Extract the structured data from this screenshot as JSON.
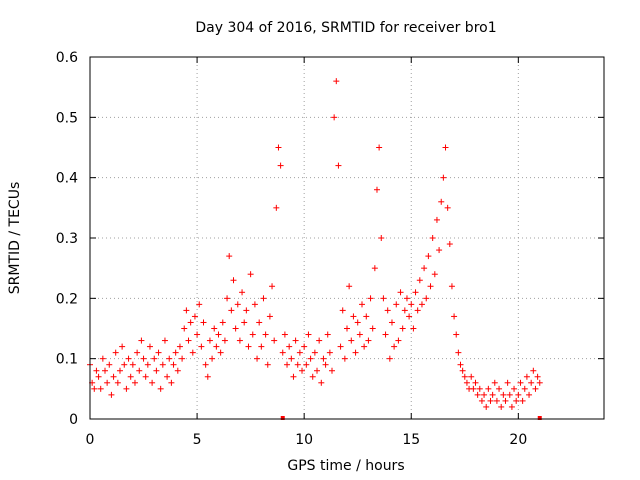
{
  "chart_data": {
    "type": "scatter",
    "title": "Day 304 of 2016, SRMTID for receiver bro1",
    "xlabel": "GPS time / hours",
    "ylabel": "SRMTID / TECUs",
    "xlim": [
      0,
      24
    ],
    "ylim": [
      0,
      0.6
    ],
    "x_ticks": [
      0,
      5,
      10,
      15,
      20
    ],
    "x_tick_labels": [
      "0",
      "5",
      "10",
      "15",
      "20"
    ],
    "y_ticks": [
      0,
      0.1,
      0.2,
      0.3,
      0.4,
      0.5,
      0.6
    ],
    "y_tick_labels": [
      "0",
      "0.1",
      "0.2",
      "0.3",
      "0.4",
      "0.5",
      "0.6"
    ],
    "grid": true,
    "marker": "plus",
    "color": "#ff0000",
    "x_axis_markers": [
      9.0,
      21.0
    ],
    "series": [
      {
        "name": "SRMTID",
        "points": [
          [
            0.0,
            0.09
          ],
          [
            0.1,
            0.06
          ],
          [
            0.2,
            0.05
          ],
          [
            0.3,
            0.08
          ],
          [
            0.4,
            0.07
          ],
          [
            0.5,
            0.05
          ],
          [
            0.6,
            0.1
          ],
          [
            0.7,
            0.08
          ],
          [
            0.8,
            0.06
          ],
          [
            0.9,
            0.09
          ],
          [
            1.0,
            0.04
          ],
          [
            1.1,
            0.07
          ],
          [
            1.2,
            0.11
          ],
          [
            1.3,
            0.06
          ],
          [
            1.4,
            0.08
          ],
          [
            1.5,
            0.12
          ],
          [
            1.6,
            0.09
          ],
          [
            1.7,
            0.05
          ],
          [
            1.8,
            0.1
          ],
          [
            1.9,
            0.07
          ],
          [
            2.0,
            0.09
          ],
          [
            2.1,
            0.06
          ],
          [
            2.2,
            0.11
          ],
          [
            2.3,
            0.08
          ],
          [
            2.4,
            0.13
          ],
          [
            2.5,
            0.1
          ],
          [
            2.6,
            0.07
          ],
          [
            2.7,
            0.09
          ],
          [
            2.8,
            0.12
          ],
          [
            2.9,
            0.06
          ],
          [
            3.0,
            0.1
          ],
          [
            3.1,
            0.08
          ],
          [
            3.2,
            0.11
          ],
          [
            3.3,
            0.05
          ],
          [
            3.4,
            0.09
          ],
          [
            3.5,
            0.13
          ],
          [
            3.6,
            0.07
          ],
          [
            3.7,
            0.1
          ],
          [
            3.8,
            0.06
          ],
          [
            3.9,
            0.09
          ],
          [
            4.0,
            0.11
          ],
          [
            4.1,
            0.08
          ],
          [
            4.2,
            0.12
          ],
          [
            4.3,
            0.1
          ],
          [
            4.4,
            0.15
          ],
          [
            4.5,
            0.18
          ],
          [
            4.6,
            0.13
          ],
          [
            4.7,
            0.16
          ],
          [
            4.8,
            0.11
          ],
          [
            4.9,
            0.17
          ],
          [
            5.0,
            0.14
          ],
          [
            5.1,
            0.19
          ],
          [
            5.2,
            0.12
          ],
          [
            5.3,
            0.16
          ],
          [
            5.4,
            0.09
          ],
          [
            5.5,
            0.07
          ],
          [
            5.6,
            0.13
          ],
          [
            5.7,
            0.1
          ],
          [
            5.8,
            0.15
          ],
          [
            5.9,
            0.12
          ],
          [
            6.0,
            0.14
          ],
          [
            6.1,
            0.11
          ],
          [
            6.2,
            0.16
          ],
          [
            6.3,
            0.13
          ],
          [
            6.4,
            0.2
          ],
          [
            6.5,
            0.27
          ],
          [
            6.6,
            0.18
          ],
          [
            6.7,
            0.23
          ],
          [
            6.8,
            0.15
          ],
          [
            6.9,
            0.19
          ],
          [
            7.0,
            0.13
          ],
          [
            7.1,
            0.21
          ],
          [
            7.2,
            0.16
          ],
          [
            7.3,
            0.18
          ],
          [
            7.4,
            0.12
          ],
          [
            7.5,
            0.24
          ],
          [
            7.6,
            0.14
          ],
          [
            7.7,
            0.19
          ],
          [
            7.8,
            0.1
          ],
          [
            7.9,
            0.16
          ],
          [
            8.0,
            0.12
          ],
          [
            8.1,
            0.2
          ],
          [
            8.2,
            0.14
          ],
          [
            8.3,
            0.09
          ],
          [
            8.4,
            0.17
          ],
          [
            8.5,
            0.22
          ],
          [
            8.6,
            0.13
          ],
          [
            8.7,
            0.35
          ],
          [
            8.8,
            0.45
          ],
          [
            8.9,
            0.42
          ],
          [
            9.0,
            0.11
          ],
          [
            9.1,
            0.14
          ],
          [
            9.2,
            0.09
          ],
          [
            9.3,
            0.12
          ],
          [
            9.4,
            0.1
          ],
          [
            9.5,
            0.07
          ],
          [
            9.6,
            0.13
          ],
          [
            9.7,
            0.09
          ],
          [
            9.8,
            0.11
          ],
          [
            9.9,
            0.08
          ],
          [
            10.0,
            0.12
          ],
          [
            10.1,
            0.09
          ],
          [
            10.2,
            0.14
          ],
          [
            10.3,
            0.1
          ],
          [
            10.4,
            0.07
          ],
          [
            10.5,
            0.11
          ],
          [
            10.6,
            0.08
          ],
          [
            10.7,
            0.13
          ],
          [
            10.8,
            0.06
          ],
          [
            10.9,
            0.1
          ],
          [
            11.0,
            0.09
          ],
          [
            11.1,
            0.14
          ],
          [
            11.2,
            0.11
          ],
          [
            11.3,
            0.08
          ],
          [
            11.4,
            0.5
          ],
          [
            11.5,
            0.56
          ],
          [
            11.6,
            0.42
          ],
          [
            11.7,
            0.12
          ],
          [
            11.8,
            0.18
          ],
          [
            11.9,
            0.1
          ],
          [
            12.0,
            0.15
          ],
          [
            12.1,
            0.22
          ],
          [
            12.2,
            0.13
          ],
          [
            12.3,
            0.17
          ],
          [
            12.4,
            0.11
          ],
          [
            12.5,
            0.16
          ],
          [
            12.6,
            0.14
          ],
          [
            12.7,
            0.19
          ],
          [
            12.8,
            0.12
          ],
          [
            12.9,
            0.17
          ],
          [
            13.0,
            0.13
          ],
          [
            13.1,
            0.2
          ],
          [
            13.2,
            0.15
          ],
          [
            13.3,
            0.25
          ],
          [
            13.4,
            0.38
          ],
          [
            13.5,
            0.45
          ],
          [
            13.6,
            0.3
          ],
          [
            13.7,
            0.2
          ],
          [
            13.8,
            0.14
          ],
          [
            13.9,
            0.18
          ],
          [
            14.0,
            0.1
          ],
          [
            14.1,
            0.16
          ],
          [
            14.2,
            0.12
          ],
          [
            14.3,
            0.19
          ],
          [
            14.4,
            0.13
          ],
          [
            14.5,
            0.21
          ],
          [
            14.6,
            0.15
          ],
          [
            14.7,
            0.18
          ],
          [
            14.8,
            0.2
          ],
          [
            14.9,
            0.17
          ],
          [
            15.0,
            0.19
          ],
          [
            15.1,
            0.15
          ],
          [
            15.2,
            0.21
          ],
          [
            15.3,
            0.18
          ],
          [
            15.4,
            0.23
          ],
          [
            15.5,
            0.19
          ],
          [
            15.6,
            0.25
          ],
          [
            15.7,
            0.2
          ],
          [
            15.8,
            0.27
          ],
          [
            15.9,
            0.22
          ],
          [
            16.0,
            0.3
          ],
          [
            16.1,
            0.24
          ],
          [
            16.2,
            0.33
          ],
          [
            16.3,
            0.28
          ],
          [
            16.4,
            0.36
          ],
          [
            16.5,
            0.4
          ],
          [
            16.6,
            0.45
          ],
          [
            16.7,
            0.35
          ],
          [
            16.8,
            0.29
          ],
          [
            16.9,
            0.22
          ],
          [
            17.0,
            0.17
          ],
          [
            17.1,
            0.14
          ],
          [
            17.2,
            0.11
          ],
          [
            17.3,
            0.09
          ],
          [
            17.4,
            0.08
          ],
          [
            17.5,
            0.07
          ],
          [
            17.6,
            0.06
          ],
          [
            17.7,
            0.05
          ],
          [
            17.8,
            0.07
          ],
          [
            17.9,
            0.05
          ],
          [
            18.0,
            0.06
          ],
          [
            18.1,
            0.04
          ],
          [
            18.2,
            0.05
          ],
          [
            18.3,
            0.03
          ],
          [
            18.4,
            0.04
          ],
          [
            18.5,
            0.02
          ],
          [
            18.6,
            0.05
          ],
          [
            18.7,
            0.03
          ],
          [
            18.8,
            0.04
          ],
          [
            18.9,
            0.06
          ],
          [
            19.0,
            0.03
          ],
          [
            19.1,
            0.05
          ],
          [
            19.2,
            0.02
          ],
          [
            19.3,
            0.04
          ],
          [
            19.4,
            0.03
          ],
          [
            19.5,
            0.06
          ],
          [
            19.6,
            0.04
          ],
          [
            19.7,
            0.02
          ],
          [
            19.8,
            0.05
          ],
          [
            19.9,
            0.03
          ],
          [
            20.0,
            0.04
          ],
          [
            20.1,
            0.06
          ],
          [
            20.2,
            0.03
          ],
          [
            20.3,
            0.05
          ],
          [
            20.4,
            0.07
          ],
          [
            20.5,
            0.04
          ],
          [
            20.6,
            0.06
          ],
          [
            20.7,
            0.08
          ],
          [
            20.8,
            0.05
          ],
          [
            20.9,
            0.07
          ],
          [
            21.0,
            0.06
          ]
        ]
      }
    ]
  }
}
